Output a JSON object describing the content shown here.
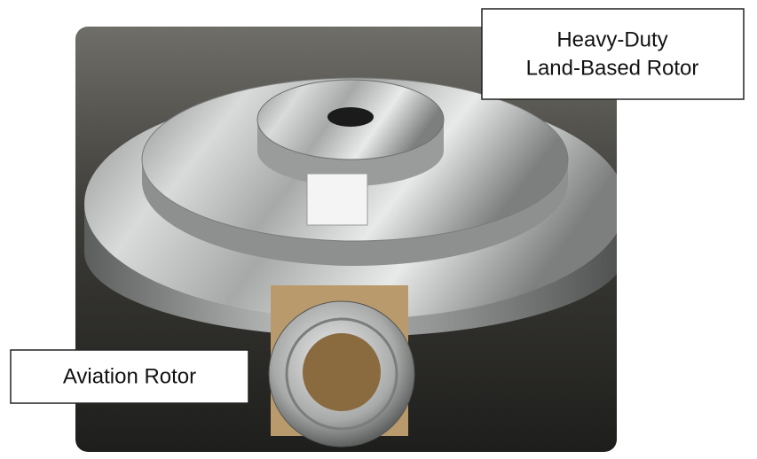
{
  "callouts": [
    {
      "lines": [
        "Heavy-Duty",
        "Land-Based Rotor"
      ]
    },
    {
      "lines": [
        "Aviation Rotor"
      ]
    }
  ]
}
